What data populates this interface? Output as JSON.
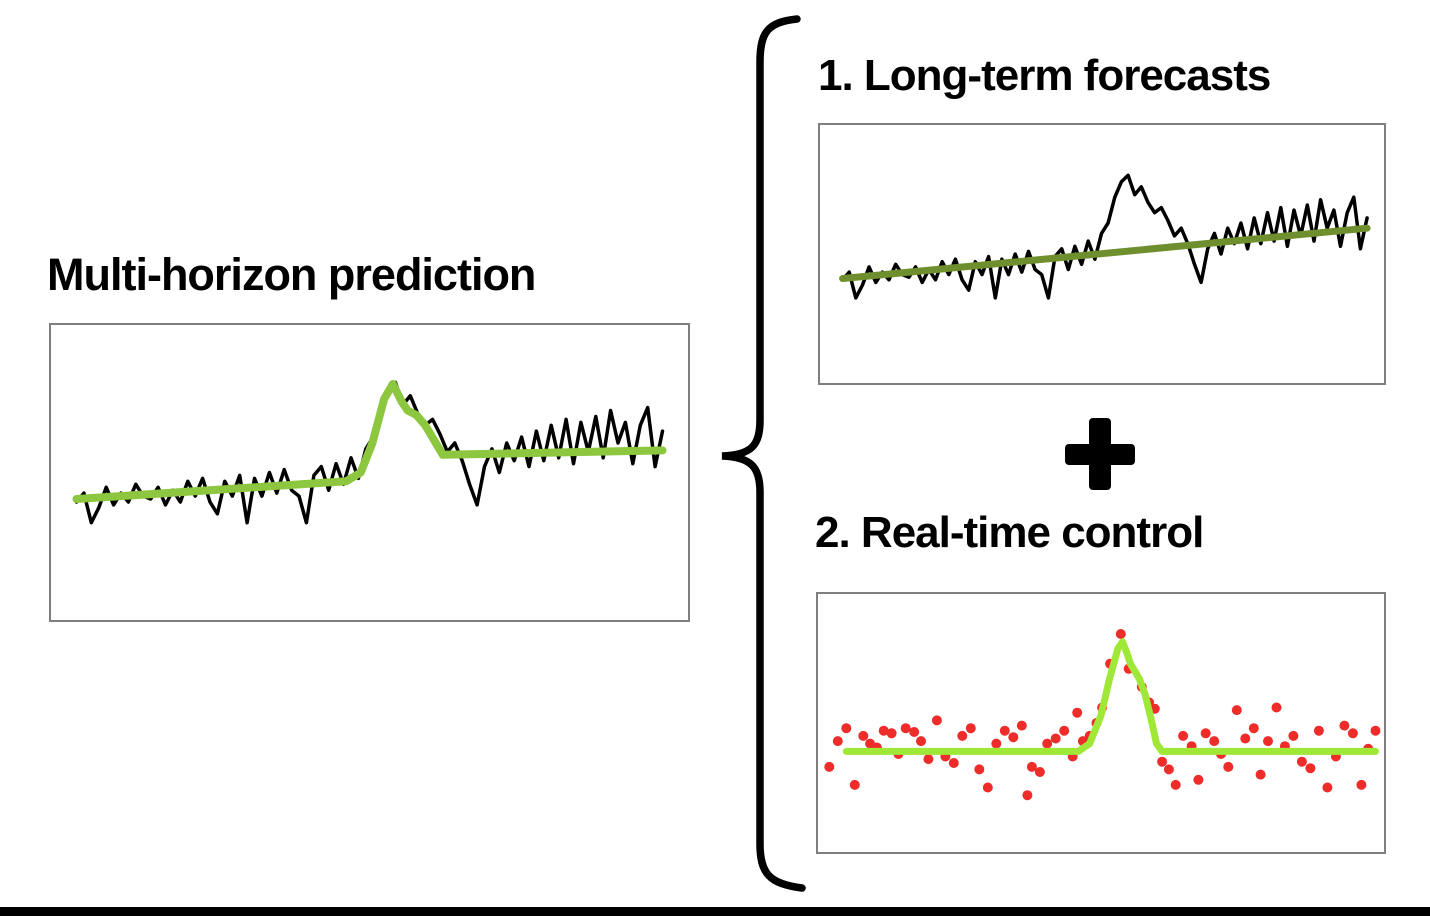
{
  "figure": {
    "left_title": "Multi-horizon prediction",
    "panel1_title": "1. Long-term forecasts",
    "panel2_title": "2. Real-time control"
  },
  "icons": {
    "combine_operator": "plus-icon",
    "grouping": "curly-brace"
  },
  "colors": {
    "series_black": "#000000",
    "prediction_green": "#8dc63f",
    "trend_olive": "#6f8f2f",
    "control_green": "#9fe838",
    "scatter_red": "#ee2c2a",
    "box_border": "#7f7f7f",
    "bottom_bar": "#000000",
    "text": "#000000"
  },
  "chart_data": [
    {
      "id": "multi-horizon",
      "type": "line",
      "title": "Multi-horizon prediction",
      "axes_visible": false,
      "x_range_pct": [
        4,
        96
      ],
      "series": [
        {
          "name": "observed-signal",
          "kind": "line",
          "color_key": "series_black",
          "width": 3.5,
          "y_pct": [
            60,
            57,
            67,
            62,
            55,
            61,
            57,
            60,
            54,
            58,
            59,
            55,
            61,
            56,
            60,
            53,
            58,
            52,
            60,
            64,
            53,
            58,
            51,
            67,
            52,
            58,
            50,
            57,
            49,
            56,
            58,
            67,
            51,
            48,
            56,
            47,
            54,
            45,
            52,
            42,
            38,
            28,
            22,
            19.5,
            27,
            24,
            30,
            34,
            32,
            37,
            43,
            40,
            46,
            54,
            61,
            48,
            42,
            50,
            40,
            46,
            38,
            48,
            36,
            46,
            34,
            45,
            32,
            47,
            33,
            43,
            31,
            45,
            29,
            40,
            33,
            47,
            34,
            28,
            48,
            36
          ]
        },
        {
          "name": "multi-horizon-prediction",
          "kind": "line",
          "color_key": "prediction_green",
          "width": 8,
          "points_pct": [
            [
              0,
              59
            ],
            [
              46,
              53
            ],
            [
              48.5,
              50
            ],
            [
              50.5,
              40
            ],
            [
              52.5,
              25
            ],
            [
              54,
              20
            ],
            [
              55.5,
              26
            ],
            [
              56.5,
              29
            ],
            [
              58,
              30.5
            ],
            [
              59.5,
              34
            ],
            [
              61,
              39
            ],
            [
              62.5,
              44
            ],
            [
              100,
              42.5
            ]
          ]
        }
      ]
    },
    {
      "id": "long-term-forecasts",
      "type": "line",
      "title": "1. Long-term forecasts",
      "axes_visible": false,
      "x_range_pct": [
        4,
        97
      ],
      "series": [
        {
          "name": "observed-signal",
          "kind": "line",
          "color_key": "series_black",
          "width": 3.5,
          "y_pct": [
            60,
            57,
            67,
            62,
            55,
            61,
            57,
            60,
            54,
            58,
            59,
            55,
            61,
            56,
            60,
            53,
            58,
            52,
            60,
            64,
            53,
            58,
            51,
            67,
            52,
            58,
            50,
            57,
            49,
            56,
            58,
            67,
            51,
            48,
            56,
            47,
            54,
            45,
            52,
            42,
            38,
            28,
            22,
            19.5,
            27,
            24,
            30,
            34,
            32,
            37,
            43,
            40,
            46,
            54,
            61,
            48,
            42,
            50,
            40,
            46,
            38,
            48,
            36,
            46,
            34,
            45,
            32,
            47,
            33,
            43,
            31,
            45,
            29,
            40,
            33,
            47,
            34,
            28,
            48,
            36
          ]
        },
        {
          "name": "long-term-trend-forecast",
          "kind": "line",
          "color_key": "trend_olive",
          "width": 7,
          "points_pct": [
            [
              0,
              59.5
            ],
            [
              100,
              40
            ]
          ]
        }
      ]
    },
    {
      "id": "real-time-control",
      "type": "scatter",
      "title": "2. Real-time control",
      "axes_visible": false,
      "x_range_pct": [
        0,
        100
      ],
      "series": [
        {
          "name": "real-time-measurements",
          "kind": "scatter",
          "color_key": "scatter_red",
          "radius": 5,
          "points_pct": [
            [
              2,
              67
            ],
            [
              3.5,
              57
            ],
            [
              5,
              52
            ],
            [
              6.5,
              74
            ],
            [
              8,
              55
            ],
            [
              9.2,
              58
            ],
            [
              10.4,
              59.5
            ],
            [
              11.6,
              53
            ],
            [
              13,
              54
            ],
            [
              14.2,
              62
            ],
            [
              15.5,
              52
            ],
            [
              17,
              53.5
            ],
            [
              18.2,
              57
            ],
            [
              19.5,
              64
            ],
            [
              21,
              49
            ],
            [
              22.5,
              63
            ],
            [
              24,
              65.5
            ],
            [
              25.5,
              55
            ],
            [
              27,
              52
            ],
            [
              28.5,
              68
            ],
            [
              30,
              75
            ],
            [
              31.5,
              58
            ],
            [
              33,
              53
            ],
            [
              34.5,
              55.5
            ],
            [
              36,
              51
            ],
            [
              37,
              78
            ],
            [
              37.8,
              67
            ],
            [
              39.2,
              69
            ],
            [
              40.5,
              58
            ],
            [
              42,
              56
            ],
            [
              43.5,
              53
            ],
            [
              45,
              63
            ],
            [
              45.8,
              46
            ],
            [
              46.8,
              57
            ],
            [
              48,
              55
            ],
            [
              49.2,
              50
            ],
            [
              50.2,
              44
            ],
            [
              51.6,
              27
            ],
            [
              53.5,
              15.5
            ],
            [
              54.9,
              29
            ],
            [
              57.2,
              36
            ],
            [
              58.5,
              42
            ],
            [
              59.5,
              44.5
            ],
            [
              60.8,
              65
            ],
            [
              62,
              68
            ],
            [
              63.2,
              74
            ],
            [
              64.5,
              55
            ],
            [
              66,
              59
            ],
            [
              67.2,
              72
            ],
            [
              68.5,
              54
            ],
            [
              70,
              57
            ],
            [
              71.2,
              62
            ],
            [
              72.5,
              67
            ],
            [
              74,
              45
            ],
            [
              75.5,
              56
            ],
            [
              77,
              52
            ],
            [
              78.2,
              70
            ],
            [
              79.5,
              57
            ],
            [
              81,
              44
            ],
            [
              82.5,
              59
            ],
            [
              84,
              55
            ],
            [
              85.5,
              65
            ],
            [
              87,
              67.5
            ],
            [
              88.5,
              53
            ],
            [
              90,
              75
            ],
            [
              91.5,
              63
            ],
            [
              93,
              51
            ],
            [
              94.5,
              54
            ],
            [
              96,
              74
            ],
            [
              97.2,
              60
            ],
            [
              98.5,
              53
            ]
          ]
        },
        {
          "name": "real-time-control-signal",
          "kind": "line",
          "color_key": "control_green",
          "width": 7,
          "points_pct": [
            [
              5,
              61
            ],
            [
              46,
              61
            ],
            [
              48,
              58
            ],
            [
              50,
              47
            ],
            [
              51.5,
              33
            ],
            [
              53,
              21
            ],
            [
              53.8,
              18.5
            ],
            [
              54.6,
              23
            ],
            [
              55.2,
              27
            ],
            [
              56,
              30
            ],
            [
              56.8,
              33
            ],
            [
              57.8,
              39
            ],
            [
              58.8,
              48
            ],
            [
              59.8,
              58
            ],
            [
              60.8,
              61
            ],
            [
              98.5,
              61
            ]
          ]
        }
      ]
    }
  ]
}
